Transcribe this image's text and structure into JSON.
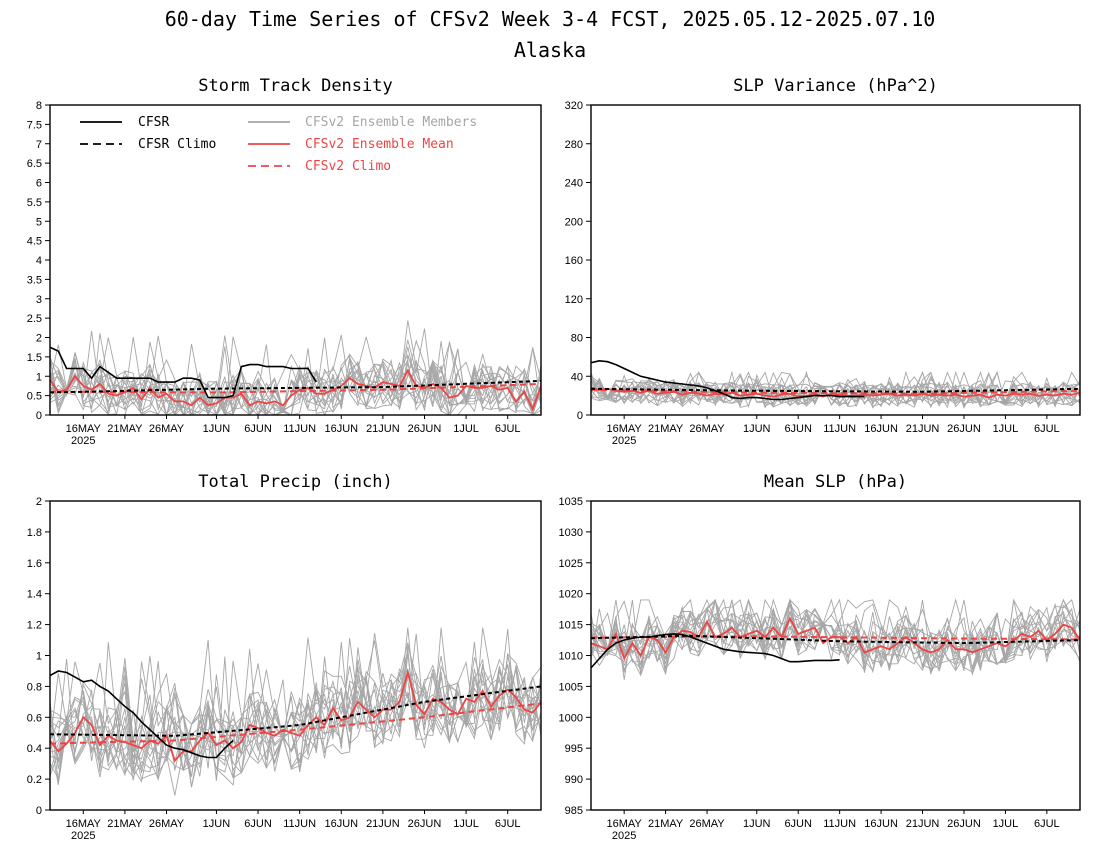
{
  "title": {
    "line1": "60-day Time Series of CFSv2 Week 3-4 FCST, 2025.05.12-2025.07.10",
    "line2": "Alaska"
  },
  "colors": {
    "cfsr": "#000000",
    "members": "#a6a6a6",
    "ens_mean": "#ee4444",
    "cfsv2_climo": "#ee4444"
  },
  "x_axis": {
    "tick_labels": [
      "16MAY",
      "21MAY",
      "26MAY",
      "1JUN",
      "6JUN",
      "11JUN",
      "16JUN",
      "21JUN",
      "26JUN",
      "1JUL",
      "6JUL"
    ],
    "year_label": "2025"
  },
  "legend": {
    "cfsr": "CFSR",
    "cfsr_climo": "CFSR Climo",
    "members": "CFSv2 Ensemble Members",
    "ens_mean": "CFSv2 Ensemble Mean",
    "cfsv2_climo": "CFSv2 Climo"
  },
  "chart_data": [
    {
      "type": "line",
      "title": "Storm Track Density",
      "ylim": [
        0,
        8
      ],
      "yticks": [
        "0",
        "0.5",
        "1",
        "1.5",
        "2",
        "2.5",
        "3",
        "3.5",
        "4",
        "4.5",
        "5",
        "5.5",
        "6",
        "6.5",
        "7",
        "7.5",
        "8"
      ],
      "x_days": "day 0 = 12MAY2025 ... day 59 = 10JUL2025",
      "series": [
        {
          "name": "CFSR",
          "values": [
            1.75,
            1.65,
            1.2,
            1.2,
            1.2,
            0.95,
            1.25,
            1.1,
            0.95,
            0.95,
            0.95,
            0.95,
            0.95,
            0.85,
            0.85,
            0.85,
            0.95,
            0.95,
            0.9,
            0.45,
            0.45,
            0.45,
            0.5,
            1.25,
            1.3,
            1.3,
            1.25,
            1.25,
            1.25,
            1.2,
            1.2,
            1.2,
            0.85
          ]
        },
        {
          "name": "CFSR Climo",
          "points": [
            [
              0,
              0.58
            ],
            [
              20,
              0.68
            ],
            [
              40,
              0.72
            ],
            [
              59,
              0.88
            ]
          ]
        },
        {
          "name": "CFSv2 Ensemble Mean",
          "values": [
            0.9,
            0.6,
            0.65,
            1.0,
            0.75,
            0.65,
            0.8,
            0.55,
            0.5,
            0.6,
            0.7,
            0.4,
            0.7,
            0.45,
            0.55,
            0.35,
            0.35,
            0.25,
            0.45,
            0.25,
            0.3,
            0.45,
            0.45,
            0.55,
            0.25,
            0.35,
            0.3,
            0.35,
            0.25,
            0.5,
            0.65,
            0.7,
            0.55,
            0.55,
            0.65,
            0.75,
            0.95,
            0.8,
            0.75,
            0.7,
            0.85,
            0.8,
            0.75,
            1.15,
            0.75,
            0.7,
            0.8,
            0.7,
            0.45,
            0.5,
            0.75,
            0.7,
            0.7,
            0.75,
            0.65,
            0.7,
            0.35,
            0.6,
            0.15,
            0.75
          ]
        },
        {
          "name": "CFSv2 Climo",
          "points": [
            [
              0,
              0.6
            ],
            [
              20,
              0.58
            ],
            [
              40,
              0.65
            ],
            [
              59,
              0.8
            ]
          ]
        }
      ],
      "members": {
        "count": 16,
        "spread": 0.45,
        "peak": 2.8
      }
    },
    {
      "type": "line",
      "title": "SLP Variance (hPa^2)",
      "ylim": [
        0,
        320
      ],
      "yticks": [
        "0",
        "40",
        "80",
        "120",
        "160",
        "200",
        "240",
        "280",
        "320"
      ],
      "x_days": "day 0 = 12MAY2025 ... day 59 = 10JUL2025",
      "series": [
        {
          "name": "CFSR",
          "values": [
            54,
            56,
            55,
            52,
            48,
            44,
            40,
            38,
            36,
            34,
            33,
            32,
            31,
            30,
            28,
            25,
            22,
            18,
            17,
            18,
            18,
            17,
            16,
            16,
            17,
            18,
            19,
            20,
            20,
            20,
            19,
            19,
            19,
            19
          ]
        },
        {
          "name": "CFSR Climo",
          "points": [
            [
              0,
              27
            ],
            [
              20,
              25
            ],
            [
              40,
              24
            ],
            [
              59,
              27
            ]
          ]
        },
        {
          "name": "CFSv2 Ensemble Mean",
          "values": [
            28,
            26,
            27,
            25,
            24,
            25,
            23,
            25,
            22,
            23,
            24,
            21,
            23,
            22,
            20,
            22,
            21,
            23,
            20,
            21,
            22,
            20,
            19,
            21,
            22,
            19,
            20,
            21,
            19,
            22,
            21,
            20,
            20,
            21,
            20,
            21,
            22,
            20,
            21,
            20,
            22,
            20,
            21,
            20,
            21,
            19,
            20,
            21,
            18,
            21,
            20,
            22,
            21,
            22,
            20,
            21,
            20,
            22,
            21,
            23
          ]
        },
        {
          "name": "CFSv2 Climo",
          "points": [
            [
              0,
              26
            ],
            [
              20,
              23
            ],
            [
              40,
              22
            ],
            [
              59,
              25
            ]
          ]
        }
      ],
      "members": {
        "count": 16,
        "spread": 9,
        "peak": 44
      }
    },
    {
      "type": "line",
      "title": "Total Precip (inch)",
      "ylim": [
        0,
        2
      ],
      "yticks": [
        "0",
        "0.2",
        "0.4",
        "0.6",
        "0.8",
        "1",
        "1.2",
        "1.4",
        "1.6",
        "1.8",
        "2"
      ],
      "x_days": "day 0 = 12MAY2025 ... day 59 = 10JUL2025",
      "series": [
        {
          "name": "CFSR",
          "values": [
            0.87,
            0.9,
            0.89,
            0.86,
            0.83,
            0.84,
            0.8,
            0.77,
            0.72,
            0.67,
            0.63,
            0.57,
            0.52,
            0.47,
            0.42,
            0.4,
            0.39,
            0.37,
            0.35,
            0.34,
            0.34,
            0.4,
            0.45
          ]
        },
        {
          "name": "CFSR Climo",
          "points": [
            [
              0,
              0.49
            ],
            [
              15,
              0.48
            ],
            [
              30,
              0.55
            ],
            [
              45,
              0.7
            ],
            [
              59,
              0.8
            ]
          ]
        },
        {
          "name": "CFSv2 Ensemble Mean",
          "values": [
            0.45,
            0.38,
            0.43,
            0.5,
            0.6,
            0.55,
            0.42,
            0.48,
            0.45,
            0.44,
            0.42,
            0.4,
            0.45,
            0.43,
            0.48,
            0.32,
            0.38,
            0.38,
            0.45,
            0.5,
            0.42,
            0.45,
            0.4,
            0.44,
            0.55,
            0.53,
            0.5,
            0.48,
            0.52,
            0.5,
            0.48,
            0.55,
            0.6,
            0.55,
            0.66,
            0.58,
            0.6,
            0.7,
            0.65,
            0.6,
            0.65,
            0.65,
            0.7,
            0.89,
            0.68,
            0.62,
            0.72,
            0.7,
            0.65,
            0.62,
            0.72,
            0.7,
            0.77,
            0.67,
            0.74,
            0.78,
            0.73,
            0.65,
            0.63,
            0.7
          ]
        },
        {
          "name": "CFSv2 Climo",
          "points": [
            [
              0,
              0.43
            ],
            [
              15,
              0.45
            ],
            [
              30,
              0.52
            ],
            [
              45,
              0.6
            ],
            [
              59,
              0.69
            ]
          ]
        }
      ],
      "members": {
        "count": 16,
        "spread": 0.17,
        "peak": 1.18
      }
    },
    {
      "type": "line",
      "title": "Mean SLP (hPa)",
      "ylim": [
        985,
        1035
      ],
      "yticks": [
        "985",
        "990",
        "995",
        "1000",
        "1005",
        "1010",
        "1015",
        "1020",
        "1025",
        "1030",
        "1035"
      ],
      "x_days": "day 0 = 12MAY2025 ... day 59 = 10JUL2025",
      "series": [
        {
          "name": "CFSR",
          "values": [
            1008,
            1009.5,
            1011,
            1012,
            1012.5,
            1012.8,
            1013,
            1013,
            1013.2,
            1013.4,
            1013.5,
            1013.4,
            1013,
            1012.5,
            1012,
            1011.5,
            1011,
            1010.8,
            1010.6,
            1010.5,
            1010.4,
            1010.3,
            1010,
            1009.5,
            1009,
            1009,
            1009.1,
            1009.2,
            1009.2,
            1009.2,
            1009.3
          ]
        },
        {
          "name": "CFSR Climo",
          "points": [
            [
              0,
              1012.8
            ],
            [
              12,
              1013.2
            ],
            [
              30,
              1012.3
            ],
            [
              45,
              1012.0
            ],
            [
              59,
              1012.5
            ]
          ]
        },
        {
          "name": "CFSv2 Ensemble Mean",
          "values": [
            1012,
            1011.5,
            1011,
            1013.5,
            1009.5,
            1012,
            1010,
            1013,
            1012.5,
            1010.5,
            1013,
            1014,
            1013.8,
            1013,
            1015.5,
            1013,
            1013.5,
            1014.5,
            1013,
            1013.5,
            1014,
            1013,
            1014.5,
            1013,
            1016,
            1013.5,
            1014,
            1014.5,
            1012,
            1013,
            1013,
            1012,
            1013,
            1010.5,
            1011,
            1011.5,
            1011,
            1012,
            1013,
            1012,
            1011,
            1010.5,
            1011,
            1012.5,
            1011,
            1011,
            1010.5,
            1011,
            1011.5,
            1012,
            1011.5,
            1012.5,
            1013.5,
            1013,
            1014,
            1012.5,
            1013.5,
            1015,
            1014.5,
            1012.5
          ]
        },
        {
          "name": "CFSv2 Climo",
          "points": [
            [
              0,
              1012.9
            ],
            [
              20,
              1013.1
            ],
            [
              40,
              1012.8
            ],
            [
              59,
              1012.6
            ]
          ]
        }
      ],
      "members": {
        "count": 16,
        "spread": 2.6,
        "peak": 1019
      }
    }
  ]
}
